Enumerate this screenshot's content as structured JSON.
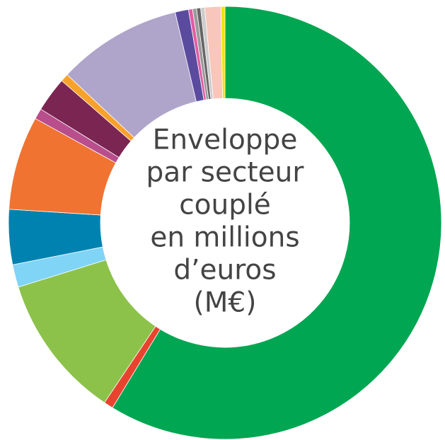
{
  "chart_data": {
    "type": "donut",
    "title": [
      "Enveloppe",
      "par secteur",
      "couplé",
      "en millions",
      "d’euros",
      "(M€)"
    ],
    "categories": [
      null,
      null,
      null,
      null,
      null,
      null,
      null,
      null,
      null,
      null,
      null,
      null,
      null,
      null,
      null,
      null,
      null
    ],
    "values": [
      58.7,
      0.7,
      10.8,
      1.7,
      4.1,
      7,
      0.8,
      2.6,
      0.6,
      9.3,
      1,
      0.3,
      0.3,
      0.3,
      0.3,
      1.2,
      0.3
    ],
    "colors": [
      "#00a651",
      "#e8432f",
      "#8cc24a",
      "#80d4f6",
      "#0082b0",
      "#f07332",
      "#b94e8c",
      "#7b2552",
      "#f8a22c",
      "#afa4c9",
      "#5b4b9f",
      "#e25ca2",
      "#9a9a9a",
      "#666666",
      "#cccccc",
      "#f8c6ba",
      "#f0e500"
    ]
  }
}
